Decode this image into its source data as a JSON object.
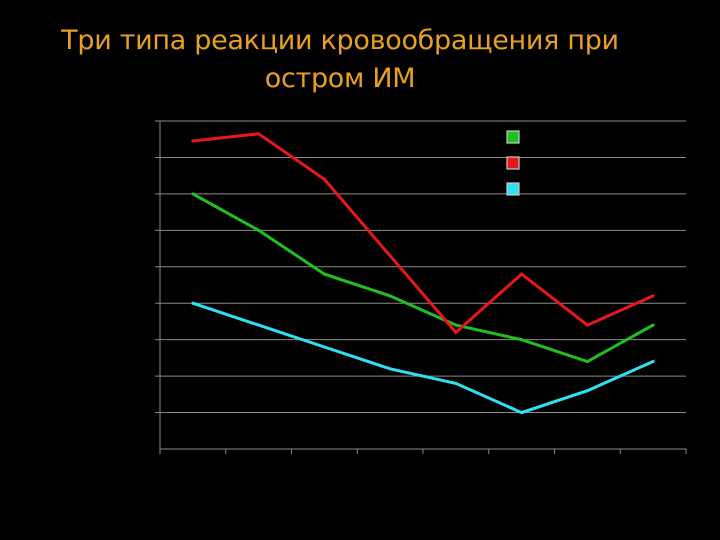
{
  "slide": {
    "title_line1": "Три типа реакции кровообращения при",
    "title_line2": "остром ИМ"
  },
  "chart_data": {
    "type": "line",
    "title": "Три типа реакции кровообращения при остром ИМ",
    "xlabel": "",
    "ylabel": "",
    "x": [
      1,
      2,
      3,
      4,
      5,
      6,
      7,
      8
    ],
    "ylim": [
      0,
      9
    ],
    "y_gridlines": [
      1,
      2,
      3,
      4,
      5,
      6,
      7,
      8,
      9
    ],
    "grid": true,
    "legend_position": "top-right",
    "series": [
      {
        "color": "#20c020",
        "values": [
          7.0,
          6.0,
          4.8,
          4.2,
          3.4,
          3.0,
          2.4,
          3.4
        ]
      },
      {
        "color": "#e81818",
        "values": [
          8.45,
          8.65,
          7.4,
          5.3,
          3.2,
          4.8,
          3.4,
          4.2
        ]
      },
      {
        "color": "#30e0f0",
        "values": [
          4.0,
          3.4,
          2.8,
          2.2,
          1.8,
          1.0,
          1.6,
          2.4
        ]
      }
    ]
  }
}
